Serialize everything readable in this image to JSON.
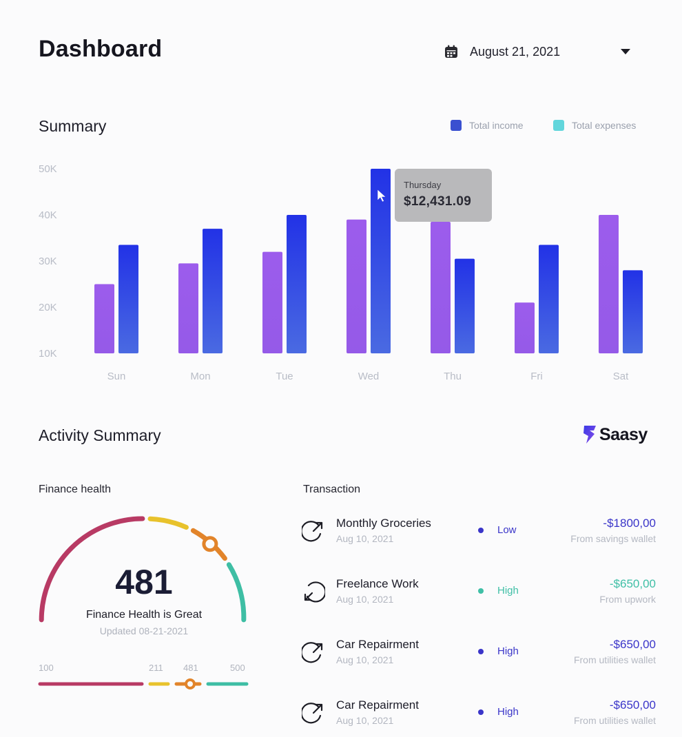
{
  "header": {
    "title": "Dashboard",
    "date": "August 21, 2021"
  },
  "summary": {
    "title": "Summary",
    "legend": [
      {
        "label": "Total income",
        "color": "#3a50d0"
      },
      {
        "label": "Total expenses",
        "color": "#62d6dc"
      }
    ],
    "tooltip": {
      "day": "Thursday",
      "value": "$12,431.09"
    }
  },
  "chart_data": {
    "type": "bar",
    "categories": [
      "Sun",
      "Mon",
      "Tue",
      "Wed",
      "Thu",
      "Fri",
      "Sat"
    ],
    "y_ticks": [
      "50K",
      "40K",
      "30K",
      "20K",
      "10K"
    ],
    "ylim": [
      10000,
      50000
    ],
    "series": [
      {
        "color": "#9a5cec",
        "values": [
          25000,
          29500,
          32000,
          39000,
          38500,
          21000,
          40000
        ]
      },
      {
        "color": "#3440e4",
        "values": [
          33500,
          37000,
          40000,
          50000,
          30500,
          33500,
          28000
        ]
      }
    ],
    "hovered_category": "Thu",
    "grid": false
  },
  "activity": {
    "title": "Activity Summary",
    "brand": "Saasy"
  },
  "finance_health": {
    "title": "Finance health",
    "score": "481",
    "caption": "Finance Health is Great",
    "updated": "Updated 08-21-2021",
    "ticks": [
      "100",
      "211",
      "481",
      "500"
    ],
    "colors": {
      "poor": "#b83a64",
      "fair": "#e8c22c",
      "good": "#e2842a",
      "great": "#3ebea4"
    }
  },
  "transactions": {
    "title": "Transaction",
    "items": [
      {
        "name": "Monthly Groceries",
        "date": "Aug 10, 2021",
        "priority": "Low",
        "priority_color": "#3a35c9",
        "amount": "-$1800,00",
        "amount_color": "#3a35c9",
        "source": "From savings wallet",
        "icon": "arrow-out-icon"
      },
      {
        "name": "Freelance Work",
        "date": "Aug 10, 2021",
        "priority": "High",
        "priority_color": "#3fbfa6",
        "amount": "-$650,00",
        "amount_color": "#3fbfa6",
        "source": "From upwork",
        "icon": "arrow-in-icon"
      },
      {
        "name": "Car Repairment",
        "date": "Aug 10, 2021",
        "priority": "High",
        "priority_color": "#3a35c9",
        "amount": "-$650,00",
        "amount_color": "#3a35c9",
        "source": "From utilities wallet",
        "icon": "arrow-out-icon"
      },
      {
        "name": "Car Repairment",
        "date": "Aug 10, 2021",
        "priority": "High",
        "priority_color": "#3a35c9",
        "amount": "-$650,00",
        "amount_color": "#3a35c9",
        "source": "From utilities wallet",
        "icon": "arrow-out-icon"
      }
    ]
  }
}
